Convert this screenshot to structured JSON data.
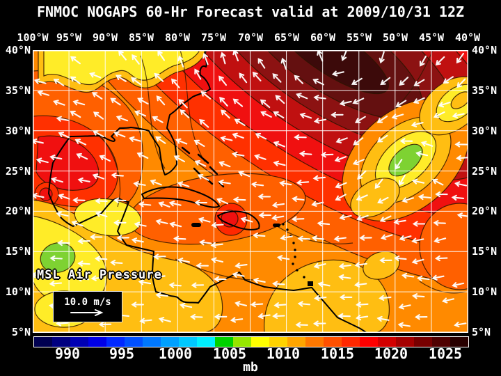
{
  "title": "FNMOC NOGAPS 60-Hr Forecast valid at 2009/10/31 12Z",
  "map": {
    "top_axis_labels": [
      "100°W",
      "95°W",
      "90°W",
      "85°W",
      "80°W",
      "75°W",
      "70°W",
      "65°W",
      "60°W",
      "55°W",
      "50°W",
      "45°W",
      "40°W"
    ],
    "left_axis_labels": [
      "40°N",
      "35°N",
      "30°N",
      "25°N",
      "20°N",
      "15°N",
      "10°N",
      "5°N"
    ],
    "right_axis_labels": [
      "40°N",
      "35°N",
      "30°N",
      "25°N",
      "20°N",
      "15°N",
      "10°N",
      "5°N"
    ],
    "field_label": "MSL Air Pressure",
    "wind_legend": {
      "speed_label": "10.0 m/s",
      "icon": "right-arrow-icon"
    }
  },
  "colorbar": {
    "tick_labels": [
      "990",
      "995",
      "1000",
      "1005",
      "1010",
      "1015",
      "1020",
      "1025"
    ],
    "unit": "mb",
    "segment_colors": [
      "#000050",
      "#000080",
      "#0000B4",
      "#0000E6",
      "#0028FF",
      "#0050FF",
      "#0078FF",
      "#00A0FF",
      "#00C8FF",
      "#00F0FF",
      "#00D200",
      "#96E600",
      "#FFFF00",
      "#FFD200",
      "#FFA500",
      "#FF7800",
      "#FF5000",
      "#FF2800",
      "#FF0000",
      "#D20000",
      "#A50000",
      "#780000",
      "#500000",
      "#280000"
    ]
  },
  "chart_data": {
    "type": "heatmap",
    "title": "FNMOC NOGAPS 60-Hr Forecast valid at 2009/10/31 12Z",
    "variable": "MSL Air Pressure",
    "unit": "mb",
    "colorbar_ticks": [
      990,
      995,
      1000,
      1005,
      1010,
      1015,
      1020,
      1025
    ],
    "lon_ticks_deg_w": [
      100,
      95,
      90,
      85,
      80,
      75,
      70,
      65,
      60,
      55,
      50,
      45,
      40
    ],
    "lat_ticks_deg_n": [
      40,
      35,
      30,
      25,
      20,
      15,
      10,
      5
    ],
    "wind_reference_speed": "10.0 m/s",
    "grid": true
  },
  "colors": {
    "background": "#000000",
    "label_text": "#ffffff"
  }
}
